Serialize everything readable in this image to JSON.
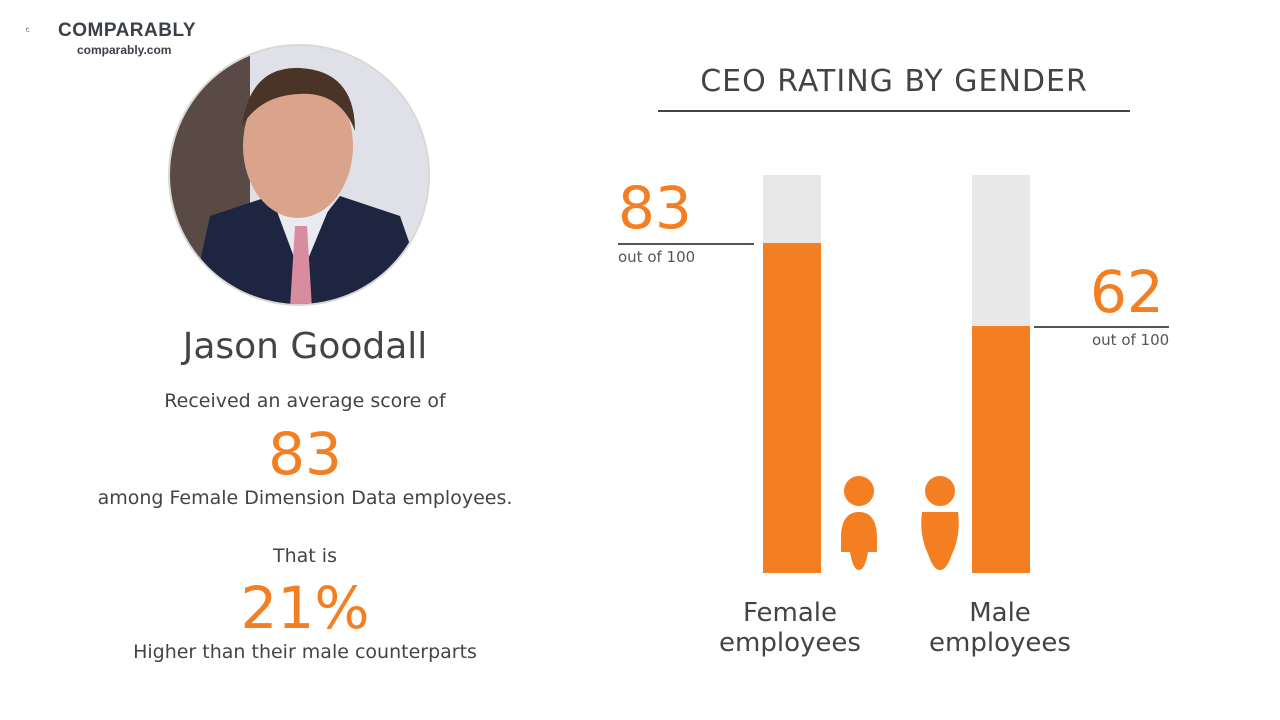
{
  "brand": {
    "name": "COMPARABLY",
    "url": "comparably.com"
  },
  "person": {
    "name": "Jason Goodall"
  },
  "summary": {
    "line1": "Received an average score of",
    "score": "83",
    "line2": "among Female Dimension Data employees.",
    "line3": "That is",
    "percent": "21%",
    "line4": "Higher than their male counterparts"
  },
  "colors": {
    "accent": "#f47f22",
    "track": "#e8e8e8"
  },
  "chart_data": {
    "type": "bar",
    "title": "CEO RATING BY GENDER",
    "categories": [
      "Female employees",
      "Male employees"
    ],
    "category_lines": [
      [
        "Female",
        "employees"
      ],
      [
        "Male",
        "employees"
      ]
    ],
    "values": [
      83,
      62
    ],
    "max": 100,
    "value_labels": [
      "83",
      "62"
    ],
    "suffix": "out of 100",
    "icons": [
      "female-person-icon",
      "male-person-icon"
    ]
  }
}
